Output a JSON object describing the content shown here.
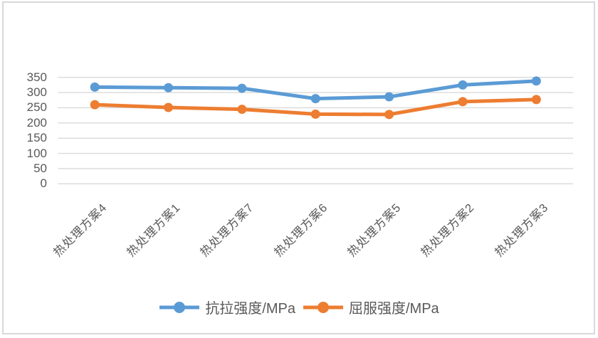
{
  "chart_data": {
    "type": "line",
    "title": "",
    "xlabel": "",
    "ylabel": "",
    "categories": [
      "热处理方案4",
      "热处理方案1",
      "热处理方案7",
      "热处理方案6",
      "热处理方案5",
      "热处理方案2",
      "热处理方案3"
    ],
    "series": [
      {
        "name": "抗拉强度/MPa",
        "color": "#5B9BD5",
        "values": [
          318,
          316,
          314,
          280,
          286,
          325,
          338
        ]
      },
      {
        "name": "屈服强度/MPa",
        "color": "#ED7D31",
        "values": [
          260,
          251,
          245,
          229,
          228,
          270,
          277
        ]
      }
    ],
    "ylim": [
      0,
      350
    ],
    "yticks": [
      0,
      50,
      100,
      150,
      200,
      250,
      300,
      350
    ],
    "grid": true,
    "gridline_color": "#D9D9D9",
    "axis_text_color": "#595959",
    "legend_position": "bottom"
  }
}
